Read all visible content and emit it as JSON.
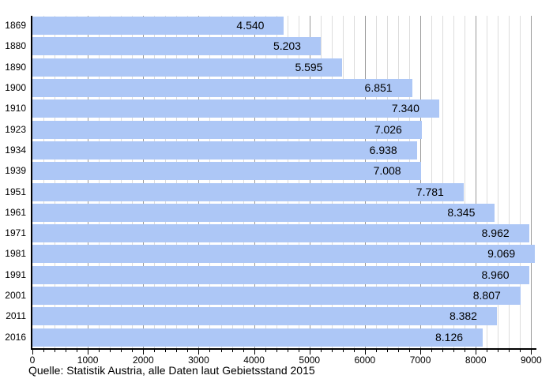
{
  "chart_data": {
    "type": "bar",
    "orientation": "horizontal",
    "title": "",
    "xlabel": "",
    "ylabel": "",
    "categories": [
      "1869",
      "1880",
      "1890",
      "1900",
      "1910",
      "1923",
      "1934",
      "1939",
      "1951",
      "1961",
      "1971",
      "1981",
      "1991",
      "2001",
      "2011",
      "2016"
    ],
    "values": [
      4540,
      5203,
      5595,
      6851,
      7340,
      7026,
      6938,
      7008,
      7781,
      8345,
      8962,
      9069,
      8960,
      8807,
      8382,
      8126
    ],
    "value_labels": [
      "4.540",
      "5.203",
      "5.595",
      "6.851",
      "7.340",
      "7.026",
      "6.938",
      "7.008",
      "7.781",
      "8.345",
      "8.962",
      "9.069",
      "8.960",
      "8.807",
      "8.382",
      "8.126"
    ],
    "xlim": [
      0,
      9000
    ],
    "x_major_tick_step": 1000,
    "x_minor_tick_step": 200,
    "x_tick_labels": [
      "0",
      "1000",
      "2000",
      "3000",
      "4000",
      "5000",
      "6000",
      "7000",
      "8000",
      "9000"
    ],
    "grid": "vertical",
    "legend": "none",
    "caption": "Quelle: Statistik Austria, alle Daten laut Gebietsstand 2015",
    "colors": {
      "bar_fill": "#adc7f6",
      "grid_minor": "#dcdcdc",
      "grid_major": "#999999",
      "axis": "#000000",
      "text": "#000000",
      "background": "#ffffff"
    }
  }
}
